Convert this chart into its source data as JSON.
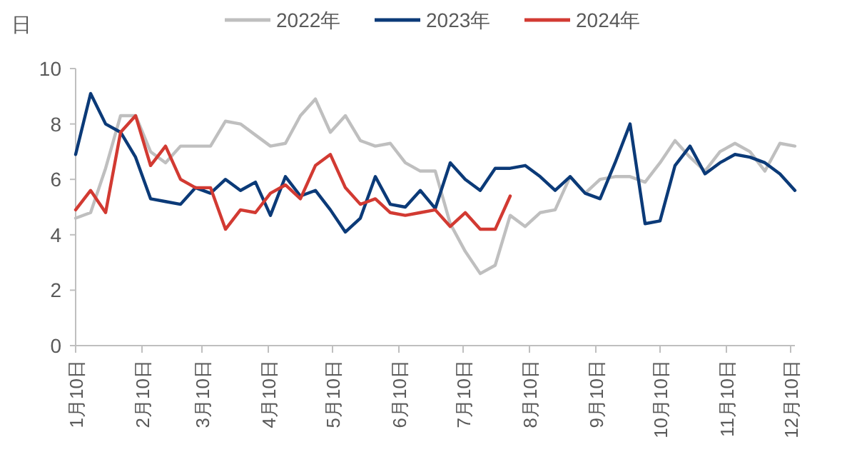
{
  "chart_data": {
    "type": "line",
    "ylabel": "日",
    "x": [
      "--01-10",
      "--01-17",
      "--01-24",
      "--01-31",
      "--02-07",
      "--02-14",
      "--02-21",
      "--02-28",
      "--03-07",
      "--03-14",
      "--03-21",
      "--03-28",
      "--04-04",
      "--04-11",
      "--04-18",
      "--04-25",
      "--05-02",
      "--05-09",
      "--05-16",
      "--05-23",
      "--05-30",
      "--06-06",
      "--06-13",
      "--06-20",
      "--06-27",
      "--07-04",
      "--07-11",
      "--07-18",
      "--07-25",
      "--08-01",
      "--08-08",
      "--08-15",
      "--08-22",
      "--08-29",
      "--09-05",
      "--09-12",
      "--09-19",
      "--09-26",
      "--10-03",
      "--10-10",
      "--10-17",
      "--10-24",
      "--10-31",
      "--11-07",
      "--11-14",
      "--11-21",
      "--11-28",
      "--12-05",
      "--12-12"
    ],
    "series": [
      {
        "name": "2022年",
        "color": "#bfbfbf",
        "values": [
          4.6,
          4.8,
          6.4,
          8.3,
          8.3,
          7.0,
          6.6,
          7.2,
          7.2,
          7.2,
          8.1,
          8.0,
          7.6,
          7.2,
          7.3,
          8.3,
          8.9,
          7.7,
          8.3,
          7.4,
          7.2,
          7.3,
          6.6,
          6.3,
          6.3,
          4.4,
          3.4,
          2.6,
          2.9,
          4.7,
          4.3,
          4.8,
          4.9,
          6.1,
          5.5,
          6.0,
          6.1,
          6.1,
          5.9,
          6.6,
          7.4,
          6.8,
          6.3,
          7.0,
          7.3,
          7.0,
          6.3,
          7.3,
          7.2
        ]
      },
      {
        "name": "2023年",
        "color": "#0b3a78",
        "values": [
          6.9,
          9.1,
          8.0,
          7.7,
          6.8,
          5.3,
          5.2,
          5.1,
          5.7,
          5.5,
          6.0,
          5.6,
          5.9,
          4.7,
          6.1,
          5.4,
          5.6,
          4.9,
          4.1,
          4.6,
          6.1,
          5.1,
          5.0,
          5.6,
          4.95,
          6.6,
          6.0,
          5.6,
          6.4,
          6.4,
          6.5,
          6.1,
          5.6,
          6.1,
          5.5,
          5.3,
          6.6,
          8.0,
          4.4,
          4.5,
          6.5,
          7.2,
          6.2,
          6.6,
          6.9,
          6.8,
          6.6,
          6.2,
          5.6
        ]
      },
      {
        "name": "2024年",
        "color": "#d23a32",
        "values": [
          4.9,
          5.6,
          4.8,
          7.7,
          8.3,
          6.5,
          7.2,
          6.0,
          5.7,
          5.7,
          4.2,
          4.9,
          4.8,
          5.5,
          5.8,
          5.3,
          6.5,
          6.9,
          5.7,
          5.1,
          5.3,
          4.8,
          4.7,
          4.8,
          4.9,
          4.3,
          4.8,
          4.2,
          4.2,
          5.4,
          null,
          null,
          null,
          null,
          null,
          null,
          null,
          null,
          null,
          null,
          null,
          null,
          null,
          null,
          null,
          null,
          null,
          null,
          null
        ]
      }
    ],
    "xlim": [
      "--01-10",
      "--12-12"
    ],
    "xticks": [
      {
        "value": "--01-10",
        "label": "1月10日"
      },
      {
        "value": "--02-10",
        "label": "2月10日"
      },
      {
        "value": "--03-10",
        "label": "3月10日"
      },
      {
        "value": "--04-10",
        "label": "4月10日"
      },
      {
        "value": "--05-10",
        "label": "5月10日"
      },
      {
        "value": "--06-10",
        "label": "6月10日"
      },
      {
        "value": "--07-10",
        "label": "7月10日"
      },
      {
        "value": "--08-10",
        "label": "8月10日"
      },
      {
        "value": "--09-10",
        "label": "9月10日"
      },
      {
        "value": "--10-10",
        "label": "10月10日"
      },
      {
        "value": "--11-10",
        "label": "11月10日"
      },
      {
        "value": "--12-10",
        "label": "12月10日"
      }
    ],
    "ylim": [
      0,
      10
    ],
    "yticks": [
      0,
      2,
      4,
      6,
      8,
      10
    ],
    "legend": "top",
    "grid": false,
    "marker": "none",
    "line_style": "solid"
  }
}
